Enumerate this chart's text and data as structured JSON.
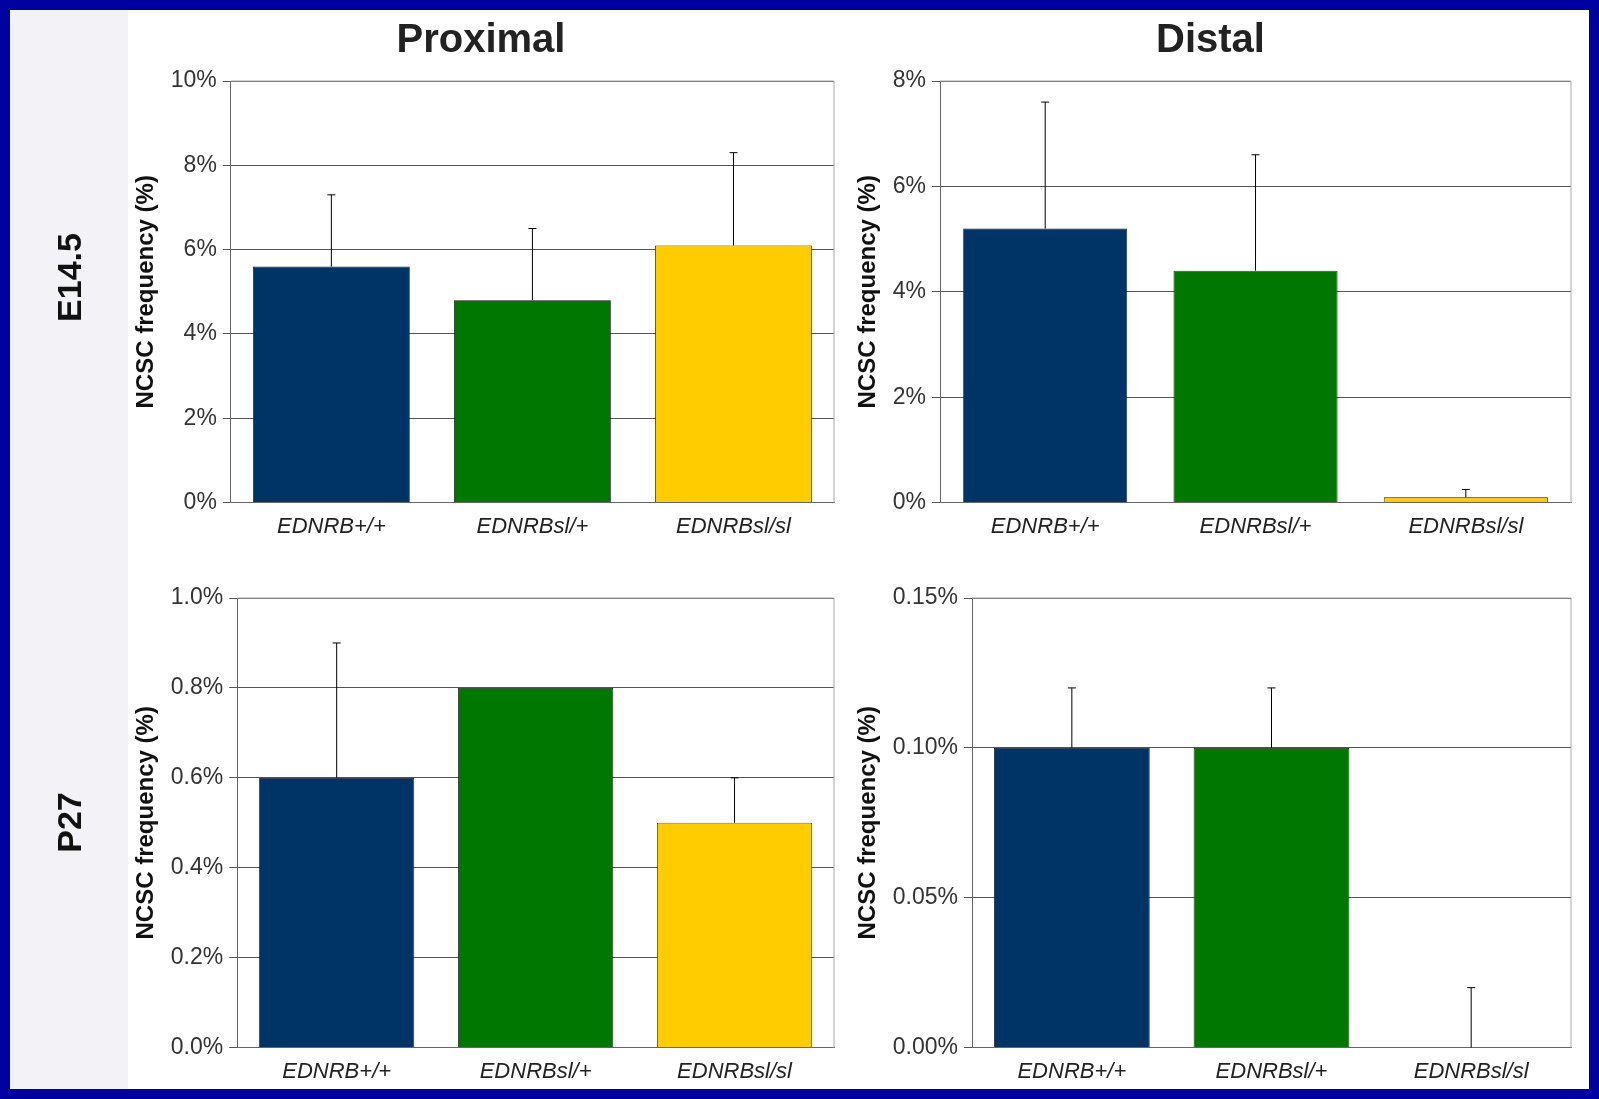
{
  "chart_data": [
    {
      "type": "bar",
      "title": "Proximal",
      "ylabel": "NCSC frequency (%)",
      "annotations": [
        "E14.5"
      ],
      "categories": [
        "EDNRB+/+",
        "EDNRBsl/+",
        "EDNRBsl/sl"
      ],
      "values": [
        5.6,
        4.8,
        6.1
      ],
      "colors": [
        "#003366",
        "#007700",
        "#ffcc00"
      ],
      "errors": [
        [
          5.6,
          7.3
        ],
        [
          4.8,
          6.5
        ],
        [
          6.1,
          8.3
        ]
      ],
      "ylim": [
        0,
        10
      ],
      "yticks": [
        {
          "value": 0,
          "label": "0%"
        },
        {
          "value": 2,
          "label": "2%"
        },
        {
          "value": 4,
          "label": "4%"
        },
        {
          "value": 6,
          "label": "6%"
        },
        {
          "value": 8,
          "label": "8%"
        },
        {
          "value": 10,
          "label": "10%"
        }
      ],
      "grid": "y",
      "legend": false
    },
    {
      "type": "bar",
      "title": "Distal",
      "ylabel": "NCSC frequency (%)",
      "categories": [
        "EDNRB+/+",
        "EDNRBsl/+",
        "EDNRBsl/sl"
      ],
      "values": [
        5.2,
        4.4,
        0.1
      ],
      "colors": [
        "#003366",
        "#007700",
        "#ffcc00"
      ],
      "errors": [
        [
          5.2,
          7.6
        ],
        [
          4.4,
          6.6
        ],
        [
          0.1,
          0.25
        ]
      ],
      "ylim": [
        0,
        8
      ],
      "yticks": [
        {
          "value": 0,
          "label": "0%"
        },
        {
          "value": 2,
          "label": "2%"
        },
        {
          "value": 4,
          "label": "4%"
        },
        {
          "value": 6,
          "label": "6%"
        },
        {
          "value": 8,
          "label": "8%"
        }
      ],
      "grid": "y",
      "legend": false
    },
    {
      "type": "bar",
      "ylabel": "NCSC frequency (%)",
      "annotations": [
        "P27"
      ],
      "categories": [
        "EDNRB+/+",
        "EDNRBsl/+",
        "EDNRBsl/sl"
      ],
      "values": [
        0.6,
        0.8,
        0.5
      ],
      "colors": [
        "#003366",
        "#007700",
        "#ffcc00"
      ],
      "errors": [
        [
          0.6,
          0.9
        ],
        null,
        [
          0.5,
          0.6
        ]
      ],
      "ylim": [
        0,
        1
      ],
      "yticks": [
        {
          "value": 0,
          "label": "0.0%"
        },
        {
          "value": 0.2,
          "label": "0.2%"
        },
        {
          "value": 0.4,
          "label": "0.4%"
        },
        {
          "value": 0.6,
          "label": "0.6%"
        },
        {
          "value": 0.8,
          "label": "0.8%"
        },
        {
          "value": 1,
          "label": "1.0%"
        }
      ],
      "grid": "y",
      "legend": false
    },
    {
      "type": "bar",
      "ylabel": "NCSC frequency (%)",
      "categories": [
        "EDNRB+/+",
        "EDNRBsl/+",
        "EDNRBsl/sl"
      ],
      "values": [
        0.1,
        0.1,
        0
      ],
      "colors": [
        "#003366",
        "#007700",
        "#ffcc00"
      ],
      "errors": [
        [
          0.1,
          0.12
        ],
        [
          0.1,
          0.12
        ],
        [
          0,
          0.02
        ]
      ],
      "ylim": [
        0,
        0.15
      ],
      "yticks": [
        {
          "value": 0,
          "label": "0.00%"
        },
        {
          "value": 0.05,
          "label": "0.05%"
        },
        {
          "value": 0.1,
          "label": "0.10%"
        },
        {
          "value": 0.15,
          "label": "0.15%"
        }
      ],
      "grid": "y",
      "legend": false
    }
  ]
}
